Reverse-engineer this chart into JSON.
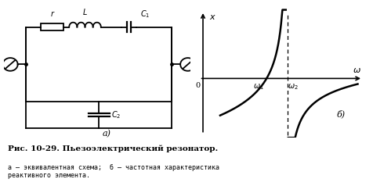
{
  "fig_width": 4.77,
  "fig_height": 2.38,
  "dpi": 100,
  "bg_color": "#ffffff",
  "caption_title": "Рис. 10-29. Пьезоэлектрический резонатор.",
  "caption_sub": "а — эквивалентная схема;  б — частотная характеристика\nреактивного элемента.",
  "circuit_label": "а)",
  "graph_label": "б)",
  "curve_color": "#000000"
}
